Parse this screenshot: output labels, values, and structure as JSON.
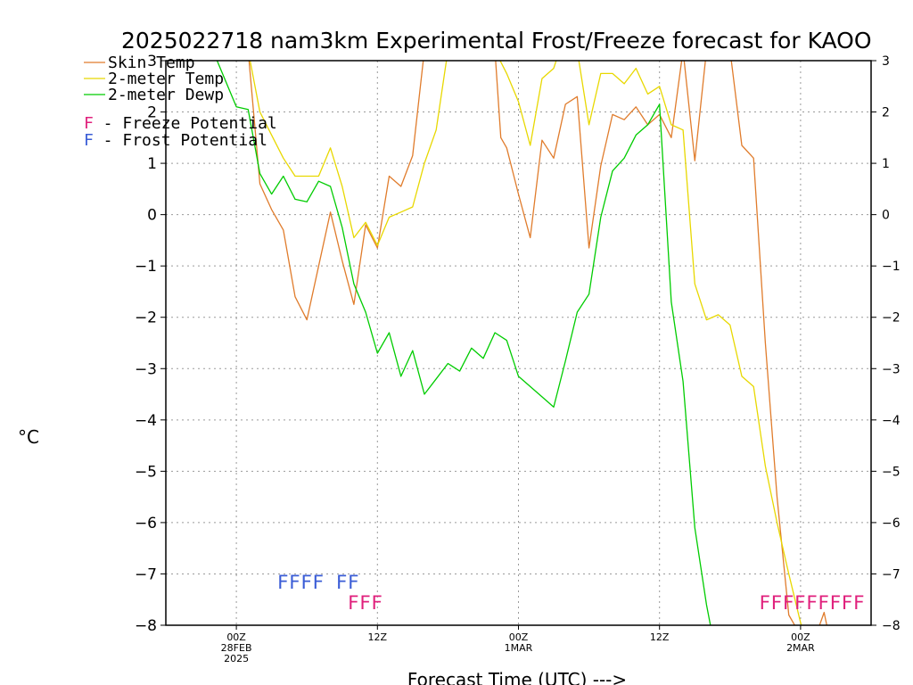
{
  "chart_data": {
    "type": "line",
    "title": "2025022718 nam3km Experimental Frost/Freeze forecast for KAOO",
    "ylabel": "°C",
    "xlabel": "Forecast Time (UTC) --->",
    "ylim": [
      -8,
      3
    ],
    "xlim": [
      -6,
      54
    ],
    "yticks": [
      3,
      2,
      1,
      0,
      -1,
      -2,
      -3,
      -4,
      -5,
      -6,
      -7,
      -8
    ],
    "xticks": [
      {
        "x": 0,
        "label": "00Z",
        "sub": [
          "28FEB",
          "2025"
        ]
      },
      {
        "x": 12,
        "label": "12Z",
        "sub": []
      },
      {
        "x": 24,
        "label": "00Z",
        "sub": [
          "1MAR"
        ]
      },
      {
        "x": 36,
        "label": "12Z",
        "sub": []
      },
      {
        "x": 48,
        "label": "00Z",
        "sub": [
          "2MAR"
        ]
      }
    ],
    "grid": true,
    "series": [
      {
        "name": "Skin Temp",
        "color": "#e07c2c",
        "points": [
          [
            1,
            3.2
          ],
          [
            2,
            0.6
          ],
          [
            3,
            0.1
          ],
          [
            4,
            -0.3
          ],
          [
            5,
            -1.6
          ],
          [
            6,
            -2.05
          ],
          [
            7,
            -1
          ],
          [
            8,
            0.05
          ],
          [
            9,
            -0.9
          ],
          [
            10,
            -1.75
          ],
          [
            11,
            -0.2
          ],
          [
            12,
            -0.65
          ],
          [
            13,
            0.75
          ],
          [
            14,
            0.55
          ],
          [
            15,
            1.15
          ],
          [
            16,
            3.2
          ],
          [
            22,
            3.2
          ],
          [
            22.5,
            1.5
          ],
          [
            23,
            1.3
          ],
          [
            24,
            0.4
          ],
          [
            25,
            -0.45
          ],
          [
            26,
            1.45
          ],
          [
            27,
            1.1
          ],
          [
            28,
            2.15
          ],
          [
            29,
            2.3
          ],
          [
            30,
            -0.65
          ],
          [
            31,
            0.95
          ],
          [
            32,
            1.95
          ],
          [
            33,
            1.85
          ],
          [
            34,
            2.1
          ],
          [
            35,
            1.75
          ],
          [
            36,
            1.95
          ],
          [
            37,
            1.5
          ],
          [
            38,
            3.2
          ],
          [
            39,
            1.05
          ],
          [
            40,
            3.2
          ],
          [
            42,
            3.2
          ],
          [
            43,
            1.35
          ],
          [
            44,
            1.1
          ],
          [
            45,
            -2.5
          ],
          [
            46,
            -5.5
          ],
          [
            47,
            -7.8
          ],
          [
            48,
            -8.2
          ],
          [
            49,
            -8.4
          ],
          [
            50,
            -7.75
          ],
          [
            50.5,
            -8.3
          ]
        ]
      },
      {
        "name": "2-meter Temp",
        "color": "#e8d800",
        "points": [
          [
            1,
            3.2
          ],
          [
            2,
            2
          ],
          [
            3,
            1.55
          ],
          [
            4,
            1.1
          ],
          [
            5,
            0.75
          ],
          [
            6,
            0.75
          ],
          [
            7,
            0.75
          ],
          [
            8,
            1.3
          ],
          [
            9,
            0.55
          ],
          [
            10,
            -0.45
          ],
          [
            11,
            -0.15
          ],
          [
            12,
            -0.6
          ],
          [
            13,
            -0.05
          ],
          [
            14,
            0.05
          ],
          [
            15,
            0.15
          ],
          [
            16,
            1
          ],
          [
            17,
            1.65
          ],
          [
            18,
            3.2
          ],
          [
            22,
            3.2
          ],
          [
            23,
            2.75
          ],
          [
            24,
            2.2
          ],
          [
            25,
            1.35
          ],
          [
            26,
            2.65
          ],
          [
            27,
            2.85
          ],
          [
            27.5,
            3.2
          ],
          [
            29,
            3.2
          ],
          [
            30,
            1.75
          ],
          [
            31,
            2.75
          ],
          [
            32,
            2.75
          ],
          [
            33,
            2.55
          ],
          [
            34,
            2.85
          ],
          [
            35,
            2.35
          ],
          [
            36,
            2.5
          ],
          [
            37,
            1.75
          ],
          [
            38,
            1.65
          ],
          [
            39,
            -1.35
          ],
          [
            40,
            -2.05
          ],
          [
            41,
            -1.95
          ],
          [
            42,
            -2.15
          ],
          [
            43,
            -3.15
          ],
          [
            44,
            -3.35
          ],
          [
            45,
            -4.9
          ],
          [
            46,
            -6
          ],
          [
            47,
            -7
          ],
          [
            48,
            -7.95
          ],
          [
            48.5,
            -8.3
          ]
        ]
      },
      {
        "name": "2-meter Dewp",
        "color": "#00cc00",
        "points": [
          [
            -2,
            3.2
          ],
          [
            0,
            2.1
          ],
          [
            1,
            2.05
          ],
          [
            2,
            0.8
          ],
          [
            3,
            0.4
          ],
          [
            4,
            0.75
          ],
          [
            5,
            0.3
          ],
          [
            6,
            0.25
          ],
          [
            7,
            0.65
          ],
          [
            8,
            0.55
          ],
          [
            9,
            -0.25
          ],
          [
            10,
            -1.35
          ],
          [
            11,
            -1.9
          ],
          [
            12,
            -2.7
          ],
          [
            13,
            -2.3
          ],
          [
            14,
            -3.15
          ],
          [
            15,
            -2.65
          ],
          [
            16,
            -3.5
          ],
          [
            17,
            -3.2
          ],
          [
            18,
            -2.9
          ],
          [
            19,
            -3.05
          ],
          [
            20,
            -2.6
          ],
          [
            21,
            -2.8
          ],
          [
            22,
            -2.3
          ],
          [
            23,
            -2.45
          ],
          [
            24,
            -3.15
          ],
          [
            25,
            -3.35
          ],
          [
            26,
            -3.55
          ],
          [
            27,
            -3.75
          ],
          [
            28,
            -2.85
          ],
          [
            29,
            -1.9
          ],
          [
            30,
            -1.55
          ],
          [
            31,
            -0.05
          ],
          [
            32,
            0.85
          ],
          [
            33,
            1.1
          ],
          [
            34,
            1.55
          ],
          [
            35,
            1.75
          ],
          [
            36,
            2.15
          ],
          [
            37,
            -1.7
          ],
          [
            38,
            -3.25
          ],
          [
            39,
            -6.1
          ],
          [
            40,
            -7.6
          ],
          [
            40.5,
            -8.2
          ]
        ]
      }
    ],
    "legend": {
      "placement": "top-left",
      "entries": [
        "Skin Temp",
        "2-meter Temp",
        "2-meter Dewp"
      ]
    },
    "potential_legend": [
      {
        "letter": "F",
        "text": " - Freeze Potential",
        "color": "#e0207c"
      },
      {
        "letter": "F",
        "text": " - Frost Potential",
        "color": "#3a5cd6"
      }
    ],
    "frost_markers": {
      "color": "#3a5cd6",
      "y": -7.15,
      "hours": [
        4,
        5,
        6,
        7,
        9,
        10
      ]
    },
    "freeze_markers": {
      "color": "#e0207c",
      "y": -7.55,
      "hours": [
        10,
        11,
        12,
        45,
        46,
        47,
        48,
        49,
        50,
        51,
        52,
        53
      ]
    }
  }
}
